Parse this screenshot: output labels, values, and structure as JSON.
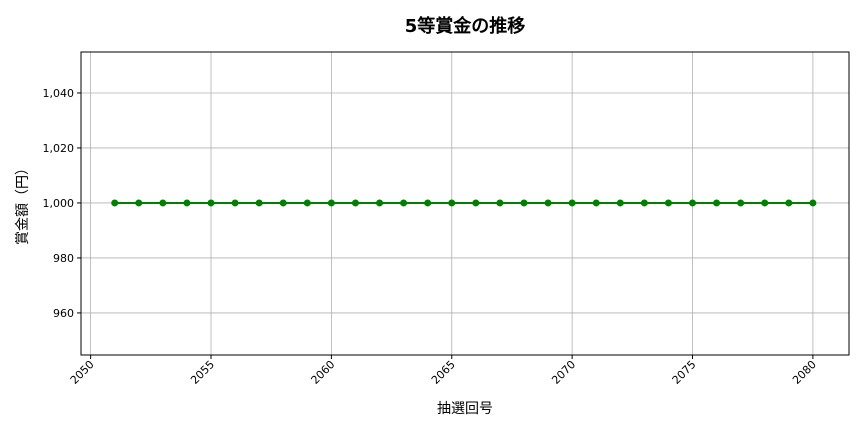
{
  "chart_data": {
    "type": "line",
    "title": "5等賞金の推移",
    "xlabel": "抽選回号",
    "ylabel": "賞金額（円）",
    "x": [
      2051,
      2052,
      2053,
      2054,
      2055,
      2056,
      2057,
      2058,
      2059,
      2060,
      2061,
      2062,
      2063,
      2064,
      2065,
      2066,
      2067,
      2068,
      2069,
      2070,
      2071,
      2072,
      2073,
      2074,
      2075,
      2076,
      2077,
      2078,
      2079,
      2080
    ],
    "series": [
      {
        "values": [
          1000,
          1000,
          1000,
          1000,
          1000,
          1000,
          1000,
          1000,
          1000,
          1000,
          1000,
          1000,
          1000,
          1000,
          1000,
          1000,
          1000,
          1000,
          1000,
          1000,
          1000,
          1000,
          1000,
          1000,
          1000,
          1000,
          1000,
          1000,
          1000,
          1000
        ],
        "color": "#008000",
        "marker": "circle"
      }
    ],
    "xlim": [
      2049.6,
      2081.5
    ],
    "ylim": [
      944.7,
      1054.9
    ],
    "xticks": [
      2050,
      2055,
      2060,
      2065,
      2070,
      2075,
      2080
    ],
    "xtick_labels": [
      "2050",
      "2055",
      "2060",
      "2065",
      "2070",
      "2075",
      "2080"
    ],
    "yticks": [
      960,
      980,
      1000,
      1020,
      1040
    ],
    "ytick_labels": [
      "960",
      "980",
      "1,000",
      "1,020",
      "1,040"
    ],
    "grid": true,
    "xtick_rotation": 45
  }
}
